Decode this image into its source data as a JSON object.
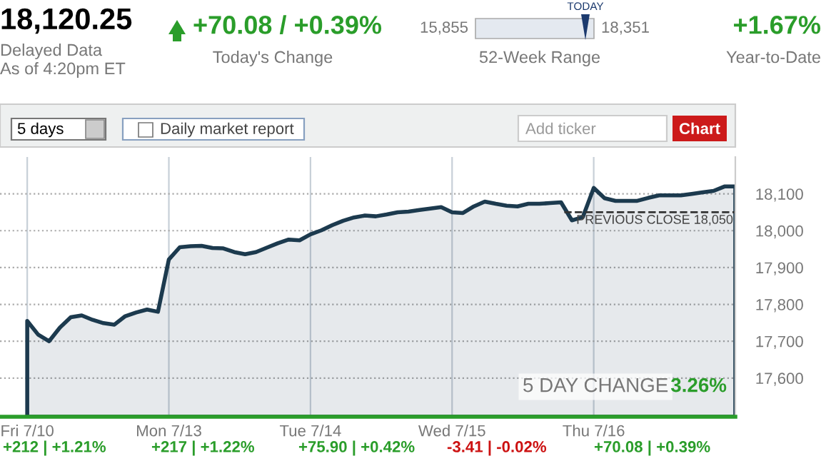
{
  "chart_data": {
    "type": "area",
    "title": "18,120.25",
    "annotations": [
      "Delayed Data",
      "As of 4:20pm ET",
      "+70.08 / +0.39%",
      "Today's Change",
      "15,855",
      "18,351",
      "TODAY",
      "52-Week Range",
      "+1.67%",
      "Year-to-Date",
      "5 days",
      "Daily market report",
      "Add ticker",
      "Chart",
      "5 DAY CHANGE",
      "3.26%",
      "+212 | +1.21%",
      "+217 | +1.22%",
      "+75.90 | +0.42%",
      "-3.41 | -0.02%",
      "+70.08 | +0.39%"
    ],
    "categories": [
      "Fri 7/10",
      null,
      null,
      null,
      null,
      null,
      null,
      null,
      null,
      null,
      null,
      null,
      null,
      "Mon 7/13",
      null,
      null,
      null,
      null,
      null,
      null,
      null,
      null,
      null,
      null,
      null,
      null,
      "Tue 7/14",
      null,
      null,
      null,
      null,
      null,
      null,
      null,
      null,
      null,
      null,
      null,
      null,
      "Wed 7/15",
      null,
      null,
      null,
      null,
      null,
      null,
      null,
      null,
      null,
      null,
      null,
      null,
      "Thu 7/16",
      null,
      null,
      null,
      null,
      null,
      null,
      null,
      null,
      null,
      null,
      null,
      null,
      null
    ],
    "series": [
      {
        "color": "#1c3a4e",
        "values": [
          17755,
          17718,
          17700,
          17737,
          17765,
          17770,
          17758,
          17749,
          17745,
          17768,
          17778,
          17786,
          17780,
          17922,
          17955,
          17958,
          17959,
          17953,
          17952,
          17942,
          17936,
          17942,
          17954,
          17966,
          17976,
          17974,
          17990,
          18001,
          18015,
          18027,
          18036,
          18041,
          18039,
          18044,
          18050,
          18052,
          18056,
          18060,
          18064,
          18050,
          18048,
          18066,
          18079,
          18073,
          18068,
          18066,
          18073,
          18073,
          18075,
          18077,
          18028,
          18037,
          18116,
          18088,
          18081,
          18081,
          18081,
          18089,
          18096,
          18096,
          18096,
          18100,
          18104,
          18108,
          18120,
          18120
        ]
      }
    ],
    "ylim": [
      17495,
      18200
    ],
    "yticks": [
      {
        "value": 17600,
        "label": "17,600"
      },
      {
        "value": 17700,
        "label": "17,700"
      },
      {
        "value": 17800,
        "label": "17,800"
      },
      {
        "value": 17900,
        "label": "17,900"
      },
      {
        "value": 18000,
        "label": "18,000"
      },
      {
        "value": 18100,
        "label": "18,100"
      }
    ],
    "ref_lines": [
      {
        "axis": "y",
        "value": 18050,
        "label": "PREVIOUS CLOSE 18,050",
        "line_style": "dashed",
        "color": "#333333"
      }
    ],
    "grid": true
  }
}
